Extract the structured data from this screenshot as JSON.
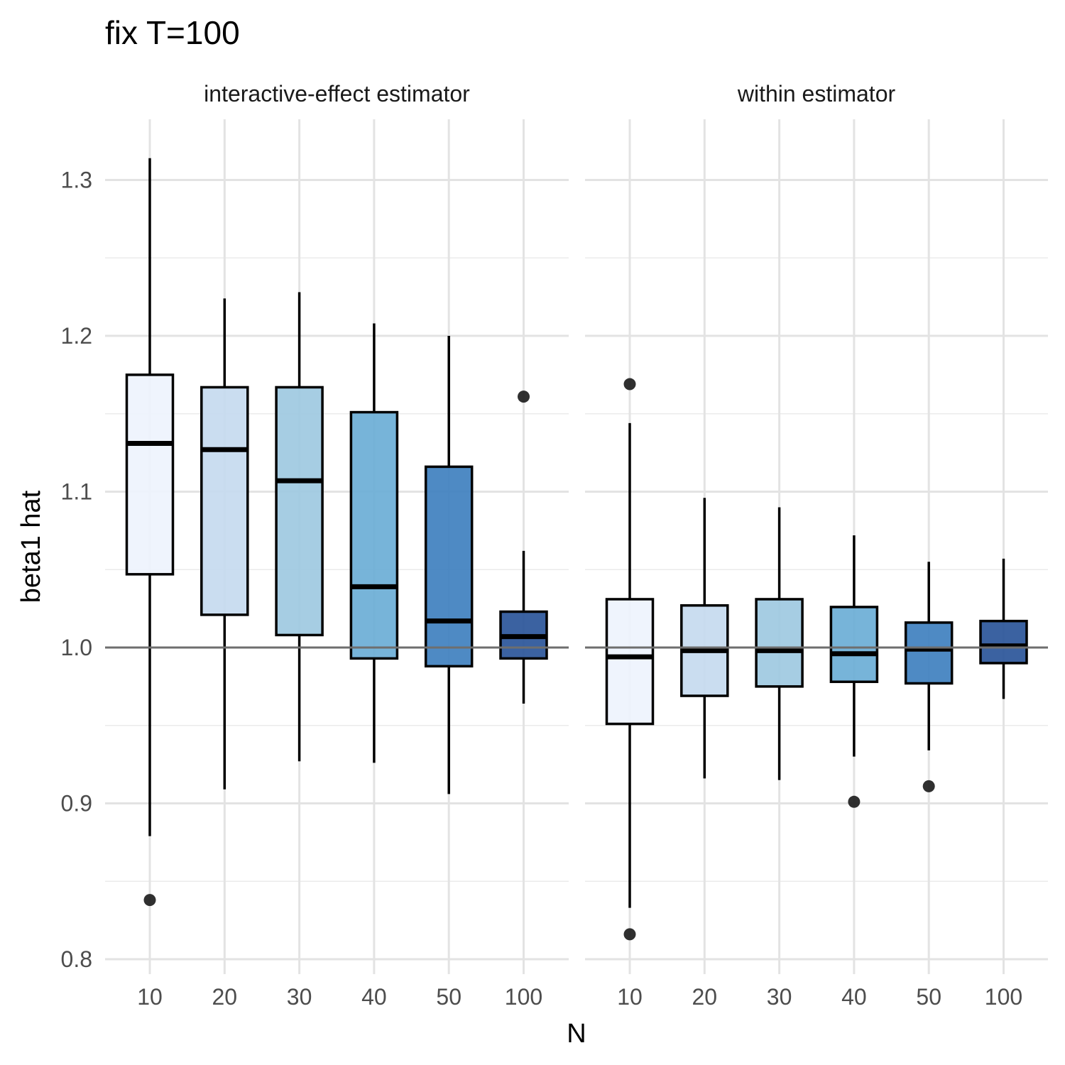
{
  "chart_data": {
    "type": "boxplot",
    "title": "fix T=100",
    "xlabel": "N",
    "ylabel": "beta1 hat",
    "ylim": [
      0.8,
      1.33
    ],
    "yticks": [
      "0.8",
      "0.9",
      "1.0",
      "1.1",
      "1.2",
      "1.3"
    ],
    "reference_line": 1.0,
    "grid": true,
    "legend": "none",
    "categories": [
      "10",
      "20",
      "30",
      "40",
      "50",
      "100"
    ],
    "fill_colors": [
      "#eef3fd",
      "#c6daef",
      "#9ec9e1",
      "#6baed6",
      "#3f80bf",
      "#2a5599"
    ],
    "panels": [
      {
        "name": "interactive-effect estimator",
        "boxes": [
          {
            "N": "10",
            "lower": 0.879,
            "q1": 1.047,
            "median": 1.131,
            "q3": 1.175,
            "upper": 1.314,
            "outliers": [
              0.838
            ]
          },
          {
            "N": "20",
            "lower": 0.909,
            "q1": 1.021,
            "median": 1.127,
            "q3": 1.167,
            "upper": 1.224,
            "outliers": []
          },
          {
            "N": "30",
            "lower": 0.927,
            "q1": 1.008,
            "median": 1.107,
            "q3": 1.167,
            "upper": 1.228,
            "outliers": []
          },
          {
            "N": "40",
            "lower": 0.926,
            "q1": 0.993,
            "median": 1.039,
            "q3": 1.151,
            "upper": 1.208,
            "outliers": []
          },
          {
            "N": "50",
            "lower": 0.906,
            "q1": 0.988,
            "median": 1.017,
            "q3": 1.116,
            "upper": 1.2,
            "outliers": []
          },
          {
            "N": "100",
            "lower": 0.964,
            "q1": 0.993,
            "median": 1.007,
            "q3": 1.023,
            "upper": 1.062,
            "outliers": [
              1.161
            ]
          }
        ]
      },
      {
        "name": "within estimator",
        "boxes": [
          {
            "N": "10",
            "lower": 0.833,
            "q1": 0.951,
            "median": 0.994,
            "q3": 1.031,
            "upper": 1.144,
            "outliers": [
              1.169,
              0.816
            ]
          },
          {
            "N": "20",
            "lower": 0.916,
            "q1": 0.969,
            "median": 0.998,
            "q3": 1.027,
            "upper": 1.096,
            "outliers": []
          },
          {
            "N": "30",
            "lower": 0.915,
            "q1": 0.975,
            "median": 0.998,
            "q3": 1.031,
            "upper": 1.09,
            "outliers": []
          },
          {
            "N": "40",
            "lower": 0.93,
            "q1": 0.978,
            "median": 0.996,
            "q3": 1.026,
            "upper": 1.072,
            "outliers": [
              0.901
            ]
          },
          {
            "N": "50",
            "lower": 0.934,
            "q1": 0.977,
            "median": 0.999,
            "q3": 1.016,
            "upper": 1.055,
            "outliers": [
              0.911
            ]
          },
          {
            "N": "100",
            "lower": 0.967,
            "q1": 0.99,
            "median": 1.001,
            "q3": 1.017,
            "upper": 1.057,
            "outliers": []
          }
        ]
      }
    ]
  }
}
